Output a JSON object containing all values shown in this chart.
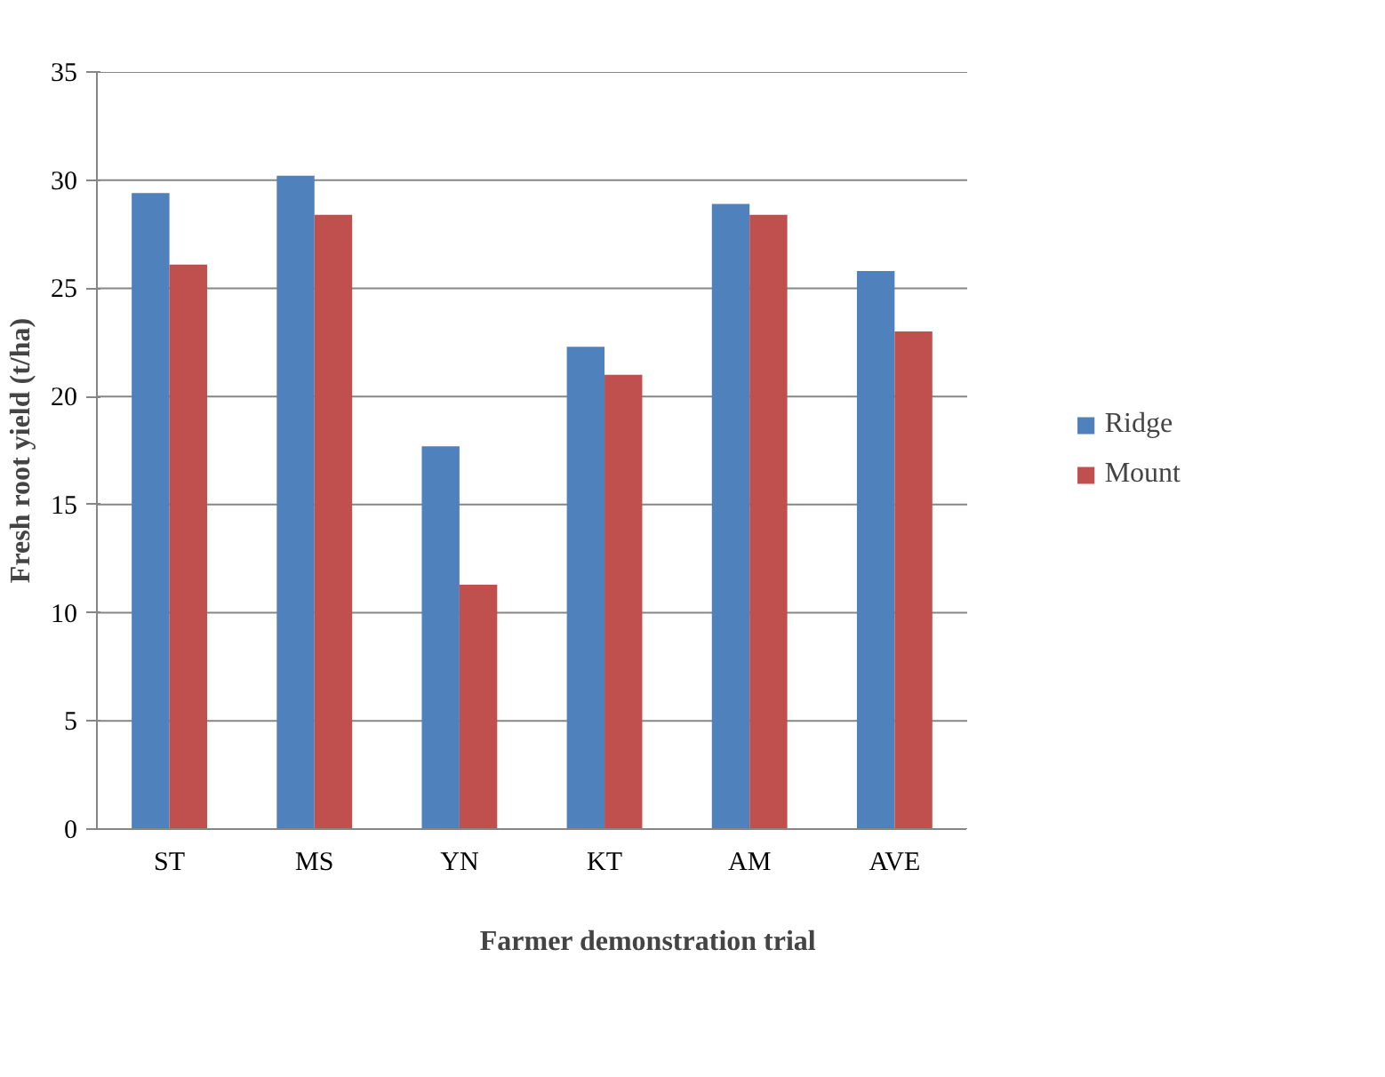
{
  "chart_data": {
    "type": "bar",
    "xlabel": "Farmer demonstration trial",
    "ylabel": "Fresh root yield (t/ha)",
    "categories": [
      "ST",
      "MS",
      "YN",
      "KT",
      "AM",
      "AVE"
    ],
    "series": [
      {
        "name": "Ridge",
        "color": "#4f81bd",
        "values": [
          29.4,
          30.2,
          17.7,
          22.3,
          28.9,
          25.8
        ]
      },
      {
        "name": "Mount",
        "color": "#c0504d",
        "values": [
          26.1,
          28.4,
          11.3,
          21.0,
          28.4,
          23.0
        ]
      }
    ],
    "ylim": [
      0,
      35
    ],
    "yticks": [
      0,
      5,
      10,
      15,
      20,
      25,
      30,
      35
    ],
    "grid": "y",
    "legend": "right"
  }
}
